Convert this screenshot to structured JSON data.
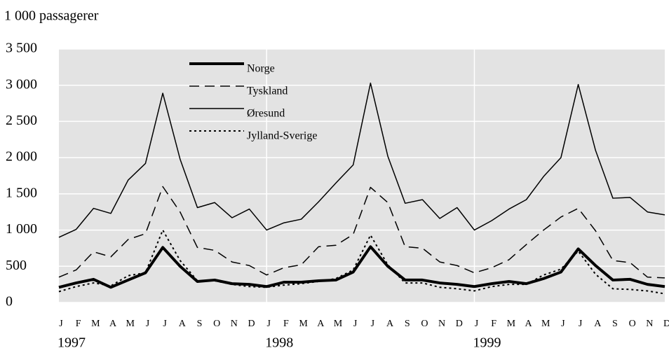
{
  "chart_data": {
    "type": "line",
    "y_label": "1 000 passagerer",
    "categories": [
      "J",
      "F",
      "M",
      "A",
      "M",
      "J",
      "J",
      "A",
      "S",
      "O",
      "N",
      "D",
      "J",
      "F",
      "M",
      "A",
      "M",
      "J",
      "J",
      "A",
      "S",
      "O",
      "N",
      "D",
      "J",
      "F",
      "M",
      "A",
      "M",
      "J",
      "J",
      "A",
      "S",
      "O",
      "N",
      "D"
    ],
    "years": [
      "1997",
      "1998",
      "1999"
    ],
    "ylim": [
      0,
      3500
    ],
    "yticks": [
      0,
      500,
      {
        "value": 1000,
        "label": "1 000"
      },
      {
        "value": 1500,
        "label": "1 500"
      },
      {
        "value": 2000,
        "label": "2 000"
      },
      {
        "value": 2500,
        "label": "2 500"
      },
      {
        "value": 3000,
        "label": "3 000"
      },
      {
        "value": 3500,
        "label": "3 500"
      }
    ],
    "grid": true,
    "background": "#e3e3e3",
    "legend": "top-left",
    "series": [
      {
        "name": "Norge",
        "color": "#000000",
        "width": 4,
        "dash": "solid",
        "values": [
          210,
          270,
          320,
          210,
          310,
          410,
          760,
          500,
          290,
          310,
          260,
          250,
          220,
          280,
          280,
          300,
          310,
          420,
          770,
          500,
          310,
          310,
          270,
          250,
          220,
          260,
          290,
          260,
          330,
          420,
          740,
          510,
          310,
          320,
          250,
          220
        ]
      },
      {
        "name": "Tyskland",
        "color": "#000000",
        "width": 1.5,
        "dash": "dashed",
        "values": [
          350,
          450,
          700,
          630,
          870,
          950,
          1600,
          1250,
          760,
          720,
          560,
          510,
          380,
          480,
          520,
          770,
          790,
          940,
          1590,
          1380,
          770,
          750,
          560,
          510,
          410,
          480,
          590,
          800,
          1000,
          1180,
          1300,
          990,
          580,
          550,
          350,
          340
        ]
      },
      {
        "name": "Øresund",
        "color": "#000000",
        "width": 1.5,
        "dash": "solid",
        "values": [
          900,
          1010,
          1300,
          1230,
          1690,
          1920,
          2890,
          1980,
          1310,
          1380,
          1170,
          1290,
          1000,
          1100,
          1150,
          1390,
          1650,
          1900,
          3030,
          2020,
          1370,
          1420,
          1160,
          1310,
          1000,
          1130,
          1290,
          1420,
          1740,
          2000,
          3010,
          2100,
          1440,
          1450,
          1250,
          1210
        ]
      },
      {
        "name": "Jylland-Sverige",
        "color": "#000000",
        "width": 2,
        "dash": "dotted",
        "values": [
          150,
          220,
          270,
          230,
          370,
          410,
          1000,
          580,
          300,
          300,
          250,
          220,
          210,
          240,
          260,
          290,
          330,
          450,
          930,
          520,
          270,
          270,
          210,
          190,
          160,
          220,
          250,
          250,
          380,
          460,
          710,
          390,
          190,
          180,
          160,
          120
        ]
      }
    ]
  }
}
